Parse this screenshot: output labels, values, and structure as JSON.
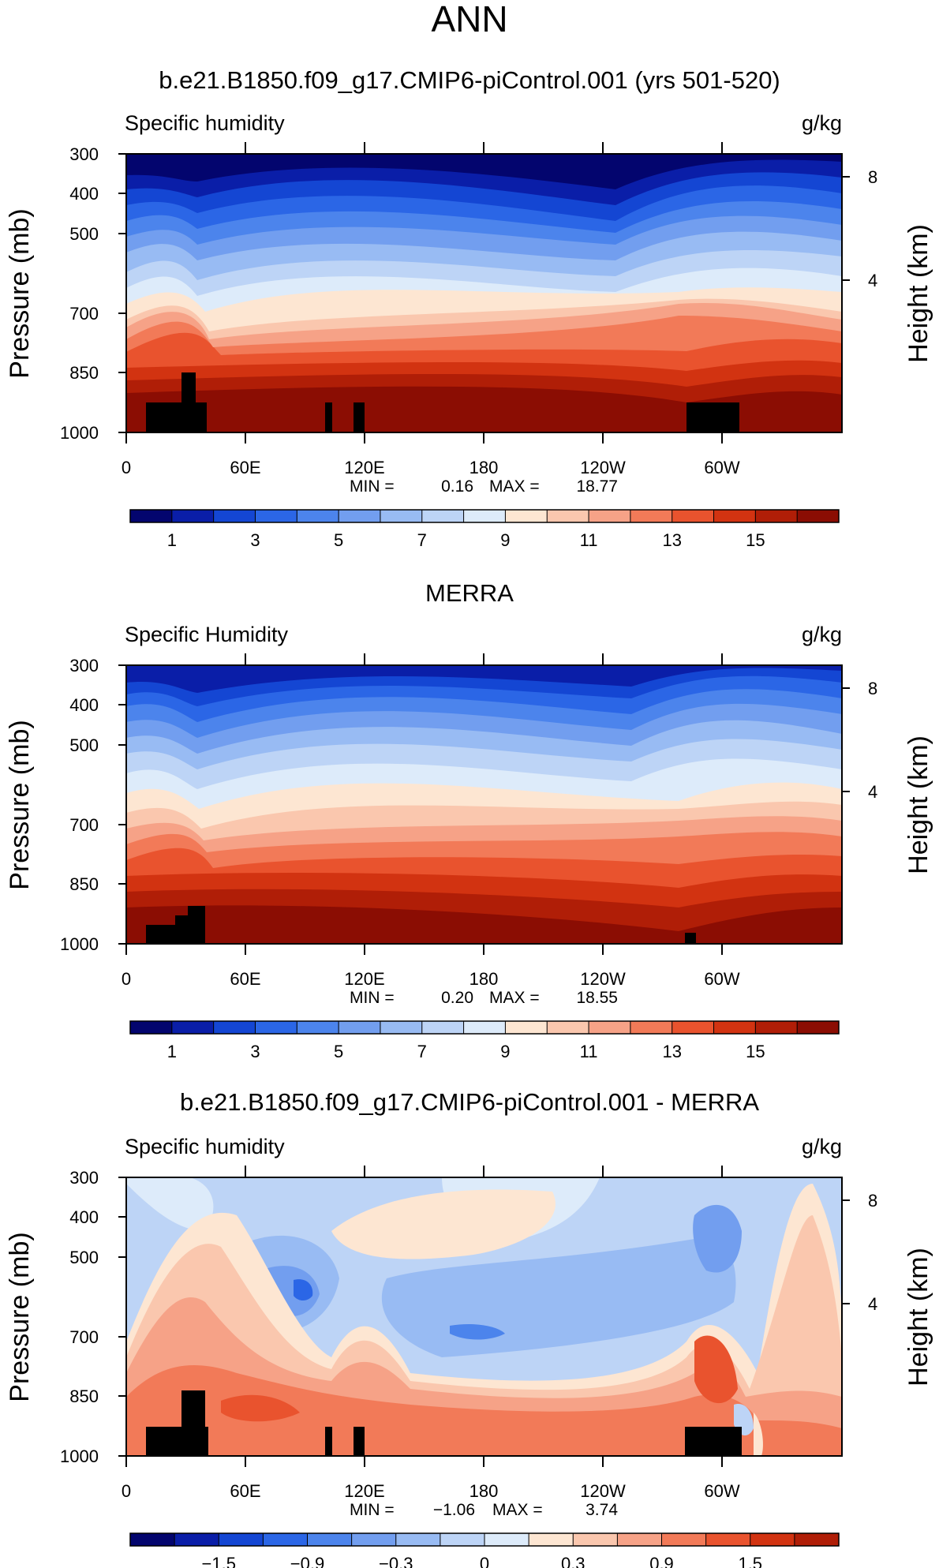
{
  "page_title": "ANN",
  "colors": {
    "frame": "#000000",
    "land": "#000000"
  },
  "chart_data": [
    {
      "type": "heatmap",
      "title": "b.e21.B1850.f09_g17.CMIP6-piControl.001 (yrs 501-520)",
      "left_label": "Specific humidity",
      "units": "g/kg",
      "ylabel": "Pressure (mb)",
      "ylabel_right": "Height (km)",
      "x_ticks": [
        "0",
        "60E",
        "120E",
        "180",
        "120W",
        "60W"
      ],
      "y_ticks": [
        "300",
        "400",
        "500",
        "700",
        "850",
        "1000"
      ],
      "y_ticks_right": [
        "8",
        "4"
      ],
      "min_label": "MIN =",
      "min_value": "0.16",
      "max_label": "MAX =",
      "max_value": "18.77",
      "colorbar_labels": [
        "1",
        "3",
        "5",
        "7",
        "9",
        "11",
        "13",
        "15"
      ],
      "colorbar_colors": [
        "#03056e",
        "#0a1ea8",
        "#1446d3",
        "#2b66e6",
        "#4c84ec",
        "#729eef",
        "#98bbf3",
        "#bdd4f6",
        "#ddebfa",
        "#fde6d2",
        "#fac7ae",
        "#f6a287",
        "#f27a58",
        "#e9532e",
        "#d23311",
        "#b01e07",
        "#8b0d03"
      ],
      "ylim": [
        1000,
        300
      ],
      "xlim": [
        0,
        360
      ]
    },
    {
      "type": "heatmap",
      "title": "MERRA",
      "left_label": "Specific Humidity",
      "units": "g/kg",
      "ylabel": "Pressure (mb)",
      "ylabel_right": "Height (km)",
      "x_ticks": [
        "0",
        "60E",
        "120E",
        "180",
        "120W",
        "60W"
      ],
      "y_ticks": [
        "300",
        "400",
        "500",
        "700",
        "850",
        "1000"
      ],
      "y_ticks_right": [
        "8",
        "4"
      ],
      "min_label": "MIN =",
      "min_value": "0.20",
      "max_label": "MAX =",
      "max_value": "18.55",
      "colorbar_labels": [
        "1",
        "3",
        "5",
        "7",
        "9",
        "11",
        "13",
        "15"
      ],
      "colorbar_colors": [
        "#03056e",
        "#0a1ea8",
        "#1446d3",
        "#2b66e6",
        "#4c84ec",
        "#729eef",
        "#98bbf3",
        "#bdd4f6",
        "#ddebfa",
        "#fde6d2",
        "#fac7ae",
        "#f6a287",
        "#f27a58",
        "#e9532e",
        "#d23311",
        "#b01e07",
        "#8b0d03"
      ],
      "ylim": [
        1000,
        300
      ],
      "xlim": [
        0,
        360
      ]
    },
    {
      "type": "heatmap",
      "title": "b.e21.B1850.f09_g17.CMIP6-piControl.001 - MERRA",
      "left_label": "Specific humidity",
      "units": "g/kg",
      "ylabel": "Pressure (mb)",
      "ylabel_right": "Height (km)",
      "x_ticks": [
        "0",
        "60E",
        "120E",
        "180",
        "120W",
        "60W"
      ],
      "y_ticks": [
        "300",
        "400",
        "500",
        "700",
        "850",
        "1000"
      ],
      "y_ticks_right": [
        "8",
        "4"
      ],
      "min_label": "MIN =",
      "min_value": "−1.06",
      "max_label": "MAX =",
      "max_value": "3.74",
      "colorbar_labels": [
        "−1.5",
        "−0.9",
        "−0.3",
        "0",
        "0.3",
        "0.9",
        "1.5"
      ],
      "colorbar_colors": [
        "#03056e",
        "#0a1ea8",
        "#1446d3",
        "#2b66e6",
        "#4c84ec",
        "#729eef",
        "#98bbf3",
        "#bdd4f6",
        "#ddebfa",
        "#fde6d2",
        "#fac7ae",
        "#f6a287",
        "#f27a58",
        "#e9532e",
        "#d23311",
        "#b01e07"
      ],
      "ylim": [
        1000,
        300
      ],
      "xlim": [
        0,
        360
      ]
    }
  ]
}
